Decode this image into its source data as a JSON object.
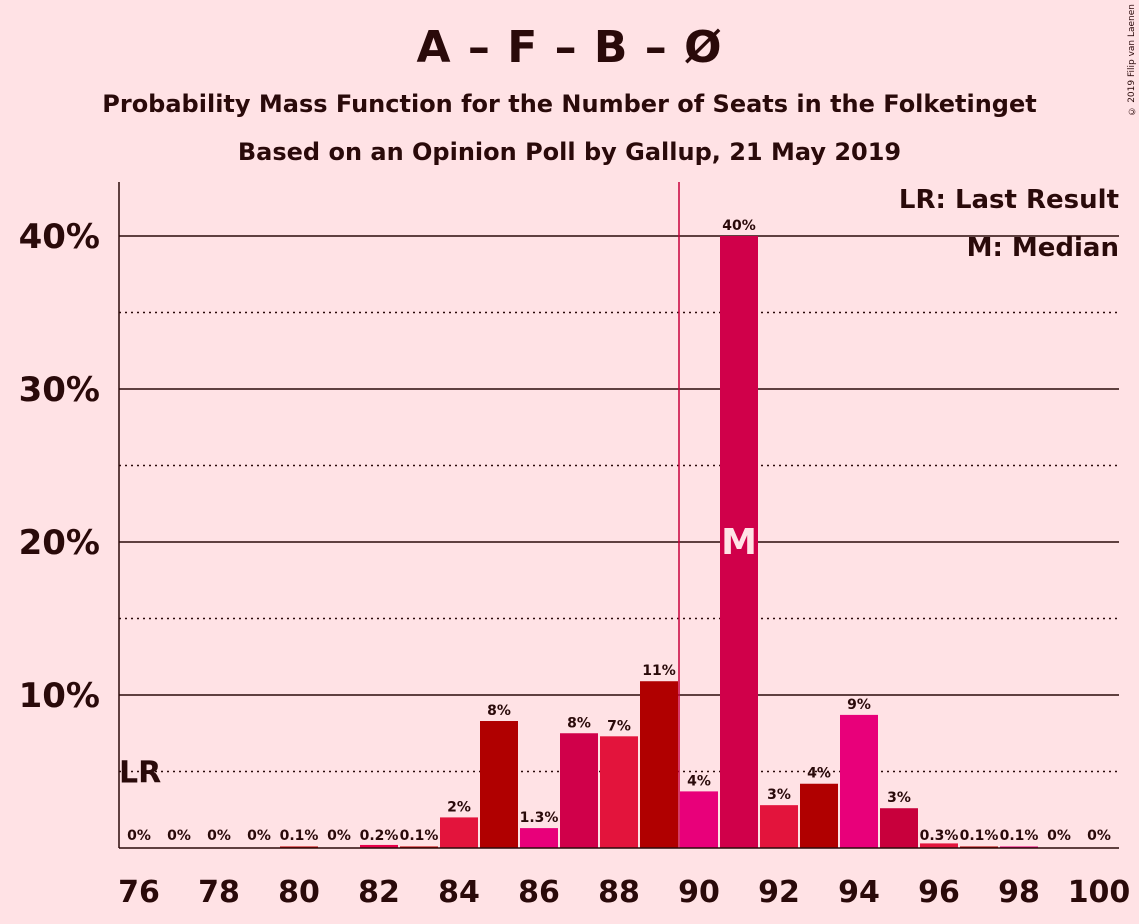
{
  "chart_data": {
    "type": "bar",
    "title": "A – F – B – Ø",
    "subtitle": "Probability Mass Function for the Number of Seats in the Folketinget",
    "subtitle2": "Based on an Opinion Poll by Gallup, 21 May 2019",
    "copyright": "© 2019 Filip van Laenen",
    "legend": [
      "LR: Last Result",
      "M: Median"
    ],
    "legend_placement": "top-right",
    "x": [
      76,
      77,
      78,
      79,
      80,
      81,
      82,
      83,
      84,
      85,
      86,
      87,
      88,
      89,
      90,
      91,
      92,
      93,
      94,
      95,
      96,
      97,
      98,
      99,
      100
    ],
    "values": [
      0,
      0,
      0,
      0,
      0.1,
      0,
      0.2,
      0.1,
      2.0,
      8.3,
      1.3,
      7.5,
      7.3,
      10.9,
      3.7,
      40.0,
      2.8,
      4.2,
      8.7,
      2.6,
      0.3,
      0.1,
      0.1,
      0,
      0
    ],
    "labels": [
      "0%",
      "0%",
      "0%",
      "0%",
      "0.1%",
      "0%",
      "0.2%",
      "0.1%",
      "2%",
      "8%",
      "1.3%",
      "8%",
      "7%",
      "11%",
      "4%",
      "40%",
      "3%",
      "4%",
      "9%",
      "3%",
      "0.3%",
      "0.1%",
      "0.1%",
      "0%",
      "0%"
    ],
    "colors": [
      "#C00000",
      "#C00000",
      "#C00000",
      "#C00000",
      "#C00000",
      "#C00000",
      "#E8004A",
      "#C00000",
      "#E3143C",
      "#B00000",
      "#E8007A",
      "#D0004A",
      "#E3143C",
      "#B00000",
      "#E8007A",
      "#D0004A",
      "#E3143C",
      "#B00000",
      "#E8007A",
      "#C8003C",
      "#E3143C",
      "#B00000",
      "#E8007A",
      "#C00000",
      "#C00000"
    ],
    "x_ticks": [
      76,
      78,
      80,
      82,
      84,
      86,
      88,
      90,
      92,
      94,
      96,
      98,
      100
    ],
    "y_ticks": [
      10,
      20,
      30,
      40
    ],
    "y_tick_labels": [
      "10%",
      "20%",
      "30%",
      "40%"
    ],
    "y_minor_ticks": [
      5,
      15,
      25,
      35
    ],
    "ylim": [
      0,
      43.5
    ],
    "xlabel": "",
    "ylabel": "",
    "last_result_y": 5,
    "last_result_label": "LR",
    "median_x": 91,
    "median_label": "M",
    "majority_x": 89.5,
    "grid": true
  }
}
